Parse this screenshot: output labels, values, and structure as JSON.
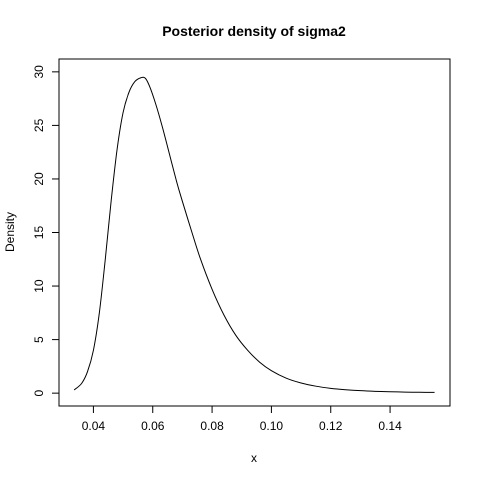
{
  "chart_data": {
    "type": "line",
    "title": "Posterior density of sigma2",
    "xlabel": "x",
    "ylabel": "Density",
    "xlim": [
      0.0284,
      0.1602
    ],
    "ylim": [
      -1.2,
      31.2
    ],
    "x_ticks": [
      0.04,
      0.06,
      0.08,
      0.1,
      0.12,
      0.14
    ],
    "x_tick_labels": [
      "0.04",
      "0.06",
      "0.08",
      "0.10",
      "0.12",
      "0.14"
    ],
    "y_ticks": [
      0,
      5,
      10,
      15,
      20,
      25,
      30
    ],
    "y_tick_labels": [
      "0",
      "5",
      "10",
      "15",
      "20",
      "25",
      "30"
    ],
    "grid": false,
    "legend": "none",
    "series": [
      {
        "color": "#000000",
        "x": [
          0.0335,
          0.036,
          0.038,
          0.04,
          0.042,
          0.044,
          0.046,
          0.048,
          0.05,
          0.052,
          0.054,
          0.056,
          0.0575,
          0.059,
          0.061,
          0.063,
          0.065,
          0.068,
          0.07,
          0.073,
          0.076,
          0.08,
          0.084,
          0.088,
          0.092,
          0.096,
          0.1,
          0.105,
          0.11,
          0.115,
          0.12,
          0.125,
          0.13,
          0.135,
          0.14,
          0.145,
          0.15,
          0.155
        ],
        "y": [
          0.3,
          0.9,
          2.0,
          4.0,
          7.5,
          12.5,
          18.0,
          22.8,
          26.2,
          28.1,
          29.1,
          29.45,
          29.4,
          28.6,
          27.0,
          25.1,
          23.0,
          19.8,
          17.9,
          15.2,
          12.6,
          9.7,
          7.3,
          5.4,
          4.0,
          2.9,
          2.1,
          1.4,
          0.95,
          0.65,
          0.45,
          0.32,
          0.23,
          0.17,
          0.13,
          0.1,
          0.08,
          0.07
        ]
      }
    ]
  }
}
